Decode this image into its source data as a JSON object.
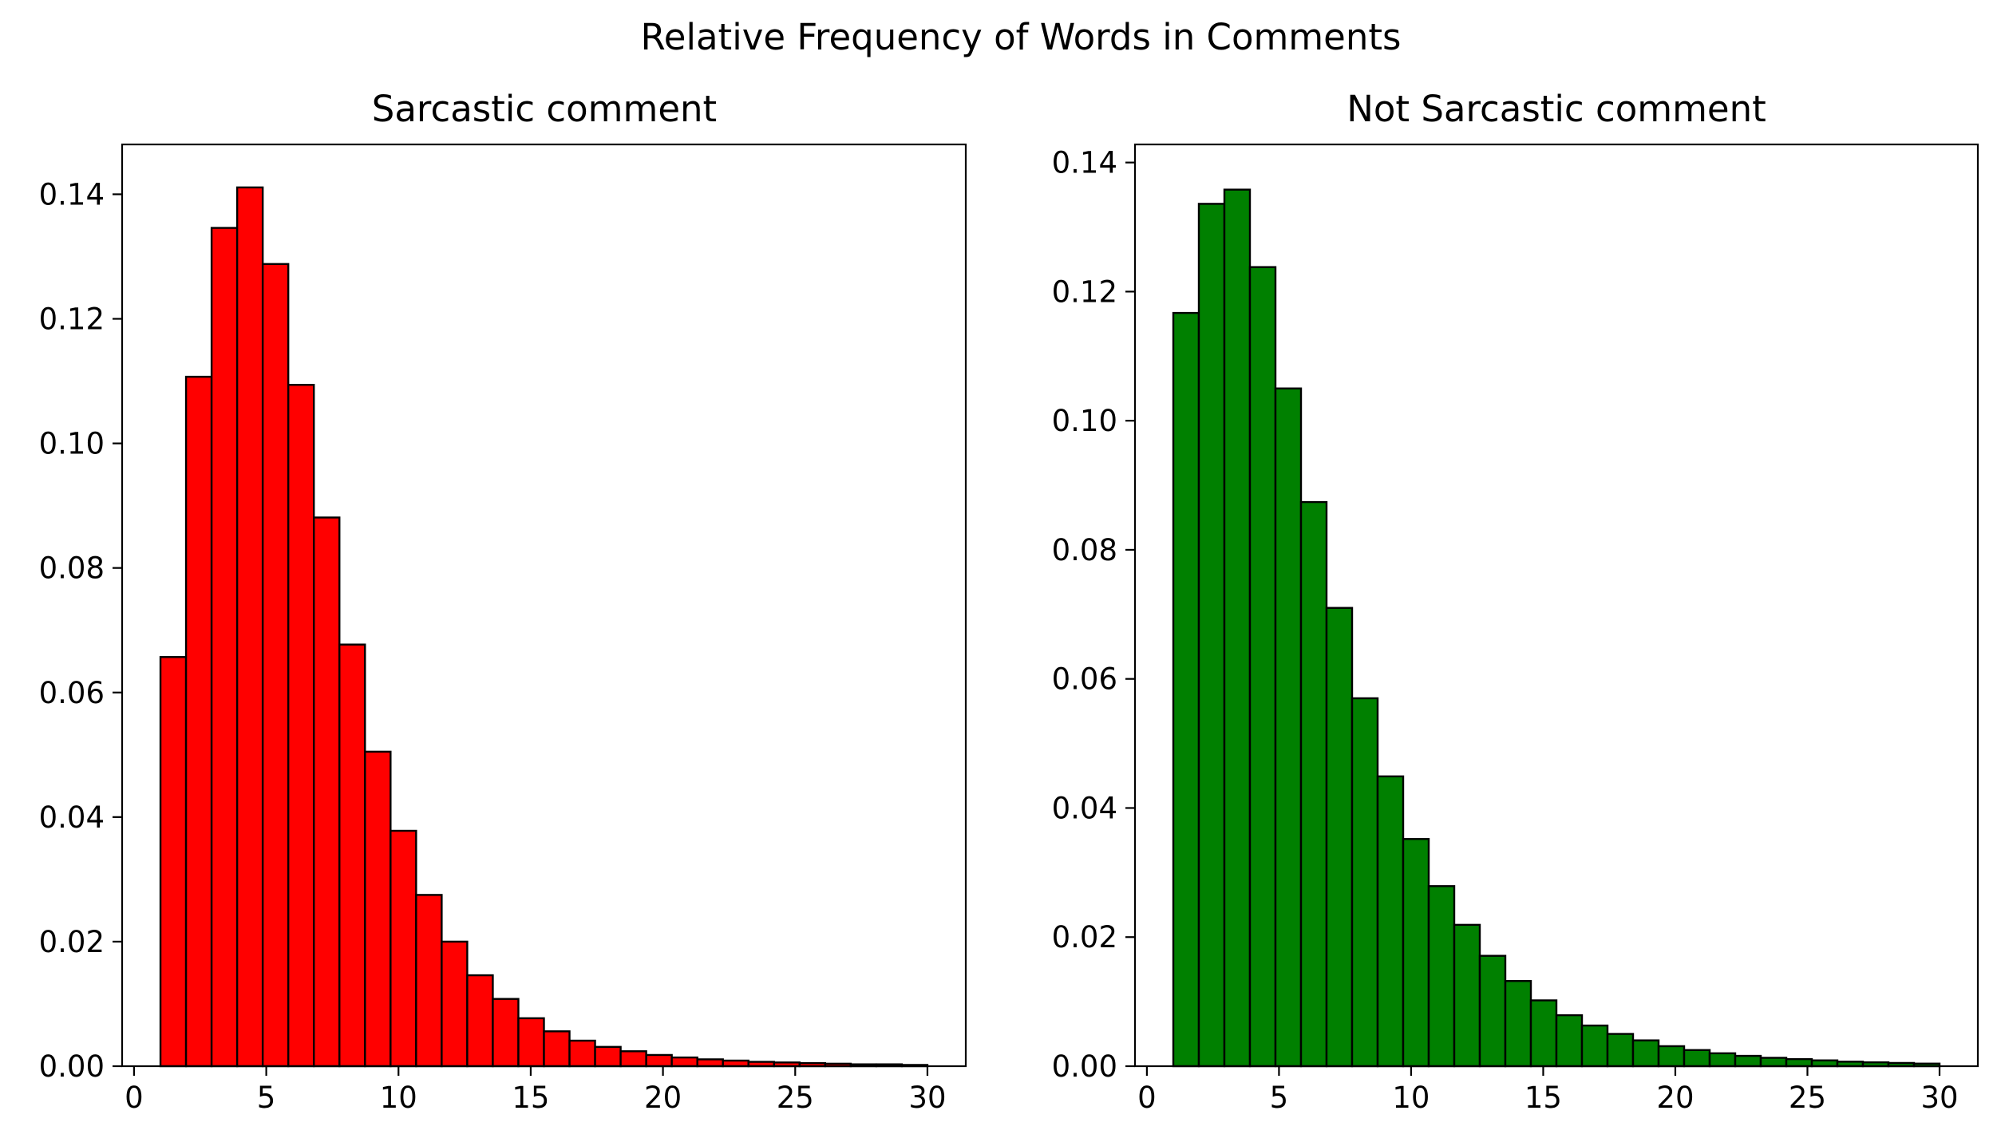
{
  "suptitle": "Relative Frequency of Words in Comments",
  "chart_data": [
    {
      "type": "bar",
      "title": "Sarcastic comment",
      "xlabel": "",
      "ylabel": "",
      "color": "#ff0000",
      "edgecolor": "#000000",
      "xlim": [
        -0.45,
        31.45
      ],
      "ylim": [
        0,
        0.148
      ],
      "xticks": [
        0,
        5,
        10,
        15,
        20,
        25,
        30
      ],
      "xtick_labels": [
        "0",
        "5",
        "10",
        "15",
        "20",
        "25",
        "30"
      ],
      "yticks": [
        0,
        0.02,
        0.04,
        0.06,
        0.08,
        0.1,
        0.12,
        0.14
      ],
      "ytick_labels": [
        "0.00",
        "0.02",
        "0.04",
        "0.06",
        "0.08",
        "0.10",
        "0.12",
        "0.14"
      ],
      "bin_edges": [
        1,
        1.9667,
        2.9333,
        3.9,
        4.8667,
        5.8333,
        6.8,
        7.7667,
        8.7333,
        9.7,
        10.6667,
        11.6333,
        12.6,
        13.5667,
        14.5333,
        15.5,
        16.4667,
        17.4333,
        18.4,
        19.3667,
        20.3333,
        21.3,
        22.2667,
        23.2333,
        24.2,
        25.1667,
        26.1333,
        27.1,
        28.0667,
        29.0333,
        30
      ],
      "values": [
        0.0657,
        0.1107,
        0.1346,
        0.1411,
        0.1288,
        0.1094,
        0.0881,
        0.0677,
        0.0505,
        0.0378,
        0.0275,
        0.02,
        0.0146,
        0.0108,
        0.0077,
        0.0056,
        0.0041,
        0.0031,
        0.0024,
        0.0018,
        0.0014,
        0.0011,
        0.0009,
        0.0007,
        0.0006,
        0.0005,
        0.0004,
        0.0003,
        0.0003,
        0.0002
      ]
    },
    {
      "type": "bar",
      "title": "Not Sarcastic comment",
      "xlabel": "",
      "ylabel": "",
      "color": "#008000",
      "edgecolor": "#000000",
      "xlim": [
        -0.45,
        31.45
      ],
      "ylim": [
        0,
        0.1428
      ],
      "xticks": [
        0,
        5,
        10,
        15,
        20,
        25,
        30
      ],
      "xtick_labels": [
        "0",
        "5",
        "10",
        "15",
        "20",
        "25",
        "30"
      ],
      "yticks": [
        0,
        0.02,
        0.04,
        0.06,
        0.08,
        0.1,
        0.12,
        0.14
      ],
      "ytick_labels": [
        "0.00",
        "0.02",
        "0.04",
        "0.06",
        "0.08",
        "0.10",
        "0.12",
        "0.14"
      ],
      "bin_edges": [
        1,
        1.9667,
        2.9333,
        3.9,
        4.8667,
        5.8333,
        6.8,
        7.7667,
        8.7333,
        9.7,
        10.6667,
        11.6333,
        12.6,
        13.5667,
        14.5333,
        15.5,
        16.4667,
        17.4333,
        18.4,
        19.3667,
        20.3333,
        21.3,
        22.2667,
        23.2333,
        24.2,
        25.1667,
        26.1333,
        27.1,
        28.0667,
        29.0333,
        30
      ],
      "values": [
        0.1167,
        0.1336,
        0.1358,
        0.1238,
        0.105,
        0.0874,
        0.071,
        0.057,
        0.0449,
        0.0352,
        0.0279,
        0.0219,
        0.0171,
        0.0132,
        0.0102,
        0.0079,
        0.0063,
        0.005,
        0.004,
        0.0031,
        0.0025,
        0.002,
        0.0016,
        0.0013,
        0.0011,
        0.0009,
        0.0007,
        0.0006,
        0.0005,
        0.0004
      ]
    }
  ]
}
